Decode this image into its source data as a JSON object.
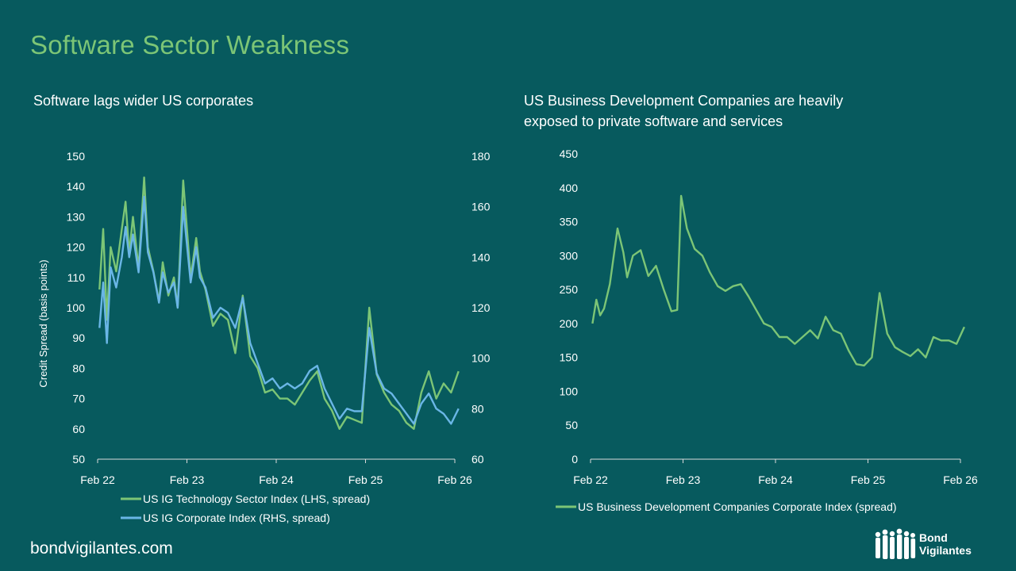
{
  "page": {
    "title": "Software Sector Weakness",
    "footer_url": "bondvigilantes.com",
    "logo": {
      "line1": "Bond",
      "line2": "Vigilantes",
      "icon": "people-silhouette-icon"
    }
  },
  "colors": {
    "background": "#075a5e",
    "tech_series": "#7cc576",
    "corp_series": "#6ab6e6",
    "bdc_series": "#7cc576",
    "title": "#7cc576"
  },
  "chart_data": [
    {
      "type": "line",
      "title": "Software lags wider US corporates",
      "ylabel": "Credit Spread (basis points)",
      "ylim": [
        50,
        150
      ],
      "yticks": [
        "50",
        "60",
        "70",
        "80",
        "90",
        "100",
        "110",
        "120",
        "130",
        "140",
        "150"
      ],
      "y2lim": [
        60,
        180
      ],
      "y2ticks": [
        "60",
        "80",
        "100",
        "120",
        "140",
        "160",
        "180"
      ],
      "xlim": [
        "2022-02",
        "2026-02"
      ],
      "xticks": [
        "Feb 22",
        "Feb 23",
        "Feb 24",
        "Feb 25",
        "Feb 26"
      ],
      "legend_position": "bottom",
      "series": [
        {
          "name": "US IG Technology Sector Index (LHS, spread)",
          "axis": "left",
          "x": [
            "2022-02",
            "2022-02",
            "2022-03",
            "2022-03",
            "2022-04",
            "2022-05",
            "2022-05",
            "2022-06",
            "2022-06",
            "2022-07",
            "2022-08",
            "2022-08",
            "2022-09",
            "2022-10",
            "2022-10",
            "2022-11",
            "2022-12",
            "2022-12",
            "2023-01",
            "2023-02",
            "2023-03",
            "2023-03",
            "2023-04",
            "2023-05",
            "2023-06",
            "2023-07",
            "2023-08",
            "2023-09",
            "2023-10",
            "2023-11",
            "2023-12",
            "2024-01",
            "2024-02",
            "2024-03",
            "2024-04",
            "2024-05",
            "2024-06",
            "2024-07",
            "2024-08",
            "2024-09",
            "2024-10",
            "2024-11",
            "2024-12",
            "2025-01",
            "2025-02",
            "2025-03",
            "2025-04",
            "2025-05",
            "2025-06",
            "2025-07",
            "2025-08",
            "2025-09",
            "2025-10",
            "2025-11",
            "2025-12",
            "2026-01",
            "2026-02"
          ],
          "values": [
            106,
            126,
            96,
            120,
            112,
            126,
            135,
            118,
            130,
            113,
            143,
            120,
            112,
            102,
            115,
            104,
            110,
            100,
            142,
            110,
            123,
            112,
            106,
            94,
            98,
            96,
            85,
            104,
            84,
            80,
            72,
            73,
            70,
            70,
            68,
            72,
            76,
            79,
            70,
            66,
            60,
            64,
            63,
            62,
            100,
            78,
            72,
            68,
            66,
            62,
            60,
            72,
            79,
            70,
            75,
            72,
            79
          ]
        },
        {
          "name": "US IG Corporate Index (RHS, spread)",
          "axis": "right",
          "x": [
            "2022-02",
            "2022-02",
            "2022-03",
            "2022-03",
            "2022-04",
            "2022-05",
            "2022-05",
            "2022-06",
            "2022-06",
            "2022-07",
            "2022-08",
            "2022-08",
            "2022-09",
            "2022-10",
            "2022-10",
            "2022-11",
            "2022-12",
            "2022-12",
            "2023-01",
            "2023-02",
            "2023-03",
            "2023-03",
            "2023-04",
            "2023-05",
            "2023-06",
            "2023-07",
            "2023-08",
            "2023-09",
            "2023-10",
            "2023-11",
            "2023-12",
            "2024-01",
            "2024-02",
            "2024-03",
            "2024-04",
            "2024-05",
            "2024-06",
            "2024-07",
            "2024-08",
            "2024-09",
            "2024-10",
            "2024-11",
            "2024-12",
            "2025-01",
            "2025-02",
            "2025-03",
            "2025-04",
            "2025-05",
            "2025-06",
            "2025-07",
            "2025-08",
            "2025-09",
            "2025-10",
            "2025-11",
            "2025-12",
            "2026-01",
            "2026-02"
          ],
          "values": [
            112,
            130,
            106,
            136,
            128,
            140,
            152,
            140,
            149,
            134,
            164,
            142,
            134,
            122,
            134,
            126,
            130,
            120,
            160,
            130,
            144,
            132,
            128,
            116,
            120,
            118,
            112,
            124,
            106,
            98,
            90,
            92,
            88,
            90,
            88,
            90,
            95,
            97,
            88,
            82,
            76,
            80,
            79,
            79,
            112,
            94,
            88,
            86,
            82,
            78,
            74,
            82,
            86,
            80,
            78,
            74,
            80
          ]
        }
      ]
    },
    {
      "type": "line",
      "title": "US Business Development Companies are heavily exposed to private software and services",
      "ylim": [
        0,
        450
      ],
      "yticks": [
        "0",
        "50",
        "100",
        "150",
        "200",
        "250",
        "300",
        "350",
        "400",
        "450"
      ],
      "xlim": [
        "2022-02",
        "2026-02"
      ],
      "xticks": [
        "Feb 22",
        "Feb 23",
        "Feb 24",
        "Feb 25",
        "Feb 26"
      ],
      "legend_position": "bottom",
      "series": [
        {
          "name": "US Business Development Companies Corporate Index (spread)",
          "x": [
            "2022-02",
            "2022-02",
            "2022-03",
            "2022-03",
            "2022-04",
            "2022-05",
            "2022-06",
            "2022-06",
            "2022-07",
            "2022-08",
            "2022-09",
            "2022-10",
            "2022-11",
            "2022-12",
            "2023-01",
            "2023-01",
            "2023-02",
            "2023-03",
            "2023-04",
            "2023-05",
            "2023-06",
            "2023-07",
            "2023-08",
            "2023-09",
            "2023-10",
            "2023-11",
            "2023-12",
            "2024-01",
            "2024-02",
            "2024-03",
            "2024-04",
            "2024-05",
            "2024-06",
            "2024-07",
            "2024-08",
            "2024-09",
            "2024-10",
            "2024-11",
            "2024-12",
            "2025-01",
            "2025-02",
            "2025-03",
            "2025-04",
            "2025-05",
            "2025-06",
            "2025-07",
            "2025-08",
            "2025-09",
            "2025-10",
            "2025-11",
            "2025-12",
            "2026-01",
            "2026-02"
          ],
          "values": [
            200,
            235,
            212,
            222,
            258,
            340,
            305,
            268,
            300,
            308,
            270,
            285,
            250,
            218,
            220,
            388,
            340,
            310,
            300,
            275,
            255,
            248,
            255,
            258,
            240,
            220,
            200,
            195,
            180,
            180,
            170,
            180,
            190,
            178,
            210,
            190,
            185,
            160,
            140,
            138,
            150,
            245,
            185,
            165,
            158,
            152,
            162,
            150,
            180,
            175,
            175,
            170,
            195
          ]
        }
      ]
    }
  ]
}
